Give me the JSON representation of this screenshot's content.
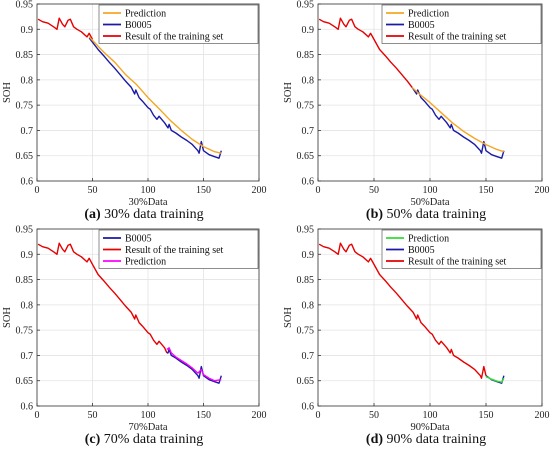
{
  "chart_data": [
    {
      "type": "line",
      "caption_letter": "(a)",
      "caption_text": " 30% data training",
      "xlabel": "30%Data",
      "ylabel": "SOH",
      "xlim": [
        0,
        200
      ],
      "ylim": [
        0.6,
        0.95
      ],
      "xticks": [
        0,
        50,
        100,
        150,
        200
      ],
      "yticks": [
        0.6,
        0.65,
        0.7,
        0.75,
        0.8,
        0.85,
        0.9,
        0.95
      ],
      "grid": true,
      "legend_position": "top-right",
      "legend": [
        {
          "name": "Prediction",
          "color": "#f5a623"
        },
        {
          "name": "B0005",
          "color": "#1a1aa6"
        },
        {
          "name": "Result of the training set",
          "color": "#e60000"
        }
      ],
      "series": [
        {
          "name": "Result of the training set",
          "color": "#e60000",
          "x": [
            1,
            5,
            10,
            15,
            18,
            20,
            23,
            25,
            28,
            30,
            33,
            36,
            40,
            45,
            47,
            50
          ],
          "y": [
            0.92,
            0.915,
            0.912,
            0.905,
            0.9,
            0.922,
            0.91,
            0.905,
            0.918,
            0.92,
            0.905,
            0.9,
            0.895,
            0.885,
            0.892,
            0.88
          ]
        },
        {
          "name": "B0005",
          "color": "#1a1aa6",
          "x": [
            47,
            55,
            60,
            65,
            70,
            75,
            80,
            85,
            88,
            89,
            92,
            95,
            100,
            102,
            105,
            108,
            110,
            115,
            118,
            119,
            121,
            125,
            130,
            135,
            140,
            145,
            146,
            148,
            150,
            155,
            160,
            164,
            166
          ],
          "y": [
            0.883,
            0.86,
            0.848,
            0.835,
            0.823,
            0.81,
            0.797,
            0.785,
            0.772,
            0.78,
            0.765,
            0.758,
            0.745,
            0.742,
            0.73,
            0.722,
            0.728,
            0.715,
            0.705,
            0.712,
            0.7,
            0.695,
            0.687,
            0.68,
            0.672,
            0.66,
            0.655,
            0.678,
            0.66,
            0.652,
            0.648,
            0.645,
            0.66
          ]
        },
        {
          "name": "Prediction",
          "color": "#f5a623",
          "x": [
            47,
            60,
            70,
            80,
            90,
            100,
            110,
            120,
            130,
            140,
            150,
            160,
            166
          ],
          "y": [
            0.885,
            0.855,
            0.835,
            0.81,
            0.79,
            0.765,
            0.743,
            0.72,
            0.7,
            0.682,
            0.668,
            0.658,
            0.655
          ]
        }
      ]
    },
    {
      "type": "line",
      "caption_letter": "(b)",
      "caption_text": " 50% data training",
      "xlabel": "50%Data",
      "ylabel": "SOH",
      "xlim": [
        0,
        200
      ],
      "ylim": [
        0.6,
        0.95
      ],
      "xticks": [
        0,
        50,
        100,
        150,
        200
      ],
      "yticks": [
        0.6,
        0.65,
        0.7,
        0.75,
        0.8,
        0.85,
        0.9,
        0.95
      ],
      "grid": true,
      "legend_position": "top-right",
      "legend": [
        {
          "name": "Prediction",
          "color": "#f5a623"
        },
        {
          "name": "B0005",
          "color": "#1a1aa6"
        },
        {
          "name": "Result of the training set",
          "color": "#e60000"
        }
      ],
      "series": [
        {
          "name": "Result of the training set",
          "color": "#e60000",
          "x": [
            1,
            5,
            10,
            15,
            18,
            20,
            23,
            25,
            28,
            30,
            33,
            36,
            40,
            45,
            47,
            50,
            55,
            60,
            65,
            70,
            75,
            80,
            84
          ],
          "y": [
            0.92,
            0.915,
            0.912,
            0.905,
            0.9,
            0.922,
            0.91,
            0.905,
            0.918,
            0.92,
            0.905,
            0.9,
            0.895,
            0.885,
            0.892,
            0.88,
            0.86,
            0.848,
            0.835,
            0.823,
            0.81,
            0.797,
            0.785
          ]
        },
        {
          "name": "B0005",
          "color": "#1a1aa6",
          "x": [
            84,
            88,
            89,
            92,
            95,
            100,
            102,
            105,
            108,
            110,
            115,
            118,
            119,
            121,
            125,
            130,
            135,
            140,
            145,
            146,
            148,
            150,
            155,
            160,
            164,
            166
          ],
          "y": [
            0.785,
            0.772,
            0.78,
            0.765,
            0.758,
            0.745,
            0.742,
            0.73,
            0.722,
            0.728,
            0.715,
            0.705,
            0.712,
            0.7,
            0.695,
            0.687,
            0.68,
            0.672,
            0.66,
            0.655,
            0.678,
            0.66,
            0.652,
            0.648,
            0.645,
            0.66
          ]
        },
        {
          "name": "Prediction",
          "color": "#f5a623",
          "x": [
            84,
            90,
            100,
            110,
            120,
            130,
            140,
            150,
            160,
            166
          ],
          "y": [
            0.785,
            0.773,
            0.755,
            0.735,
            0.715,
            0.698,
            0.684,
            0.672,
            0.662,
            0.658
          ]
        }
      ]
    },
    {
      "type": "line",
      "caption_letter": "(c)",
      "caption_text": " 70% data training",
      "xlabel": "70%Data",
      "ylabel": "SOH",
      "xlim": [
        0,
        200
      ],
      "ylim": [
        0.6,
        0.95
      ],
      "xticks": [
        0,
        50,
        100,
        150,
        200
      ],
      "yticks": [
        0.6,
        0.65,
        0.7,
        0.75,
        0.8,
        0.85,
        0.9,
        0.95
      ],
      "grid": true,
      "legend_position": "top-right",
      "legend": [
        {
          "name": "B0005",
          "color": "#1a1aa6"
        },
        {
          "name": "Result of the training set",
          "color": "#e60000"
        },
        {
          "name": "Prediction",
          "color": "#ff00ff"
        }
      ],
      "series": [
        {
          "name": "Result of the training set",
          "color": "#e60000",
          "x": [
            1,
            5,
            10,
            15,
            18,
            20,
            23,
            25,
            28,
            30,
            33,
            36,
            40,
            45,
            47,
            50,
            55,
            60,
            65,
            70,
            75,
            80,
            85,
            88,
            89,
            92,
            95,
            100,
            102,
            105,
            108,
            110,
            115,
            117
          ],
          "y": [
            0.92,
            0.915,
            0.912,
            0.905,
            0.9,
            0.922,
            0.91,
            0.905,
            0.918,
            0.92,
            0.905,
            0.9,
            0.895,
            0.885,
            0.892,
            0.88,
            0.86,
            0.848,
            0.835,
            0.823,
            0.81,
            0.797,
            0.785,
            0.772,
            0.78,
            0.765,
            0.758,
            0.745,
            0.742,
            0.73,
            0.722,
            0.728,
            0.715,
            0.705
          ]
        },
        {
          "name": "B0005",
          "color": "#1a1aa6",
          "x": [
            117,
            118,
            119,
            121,
            125,
            130,
            135,
            140,
            145,
            146,
            148,
            150,
            155,
            160,
            164,
            166
          ],
          "y": [
            0.705,
            0.705,
            0.712,
            0.7,
            0.695,
            0.687,
            0.68,
            0.672,
            0.66,
            0.655,
            0.678,
            0.66,
            0.652,
            0.648,
            0.645,
            0.66
          ]
        },
        {
          "name": "Prediction",
          "color": "#ff00ff",
          "x": [
            117,
            119,
            121,
            125,
            130,
            135,
            140,
            145,
            148,
            150,
            155,
            160,
            166
          ],
          "y": [
            0.712,
            0.715,
            0.705,
            0.697,
            0.69,
            0.683,
            0.675,
            0.665,
            0.672,
            0.662,
            0.655,
            0.65,
            0.652
          ]
        }
      ]
    },
    {
      "type": "line",
      "caption_letter": "(d)",
      "caption_text": " 90% data training",
      "xlabel": "90%Data",
      "ylabel": "SOH",
      "xlim": [
        0,
        200
      ],
      "ylim": [
        0.6,
        0.95
      ],
      "xticks": [
        0,
        50,
        100,
        150,
        200
      ],
      "yticks": [
        0.6,
        0.65,
        0.7,
        0.75,
        0.8,
        0.85,
        0.9,
        0.95
      ],
      "grid": true,
      "legend_position": "top-right",
      "legend": [
        {
          "name": "Prediction",
          "color": "#33dd33"
        },
        {
          "name": "B0005",
          "color": "#1a1aa6"
        },
        {
          "name": "Result of the training set",
          "color": "#e60000"
        }
      ],
      "series": [
        {
          "name": "Result of the training set",
          "color": "#e60000",
          "x": [
            1,
            5,
            10,
            15,
            18,
            20,
            23,
            25,
            28,
            30,
            33,
            36,
            40,
            45,
            47,
            50,
            55,
            60,
            65,
            70,
            75,
            80,
            85,
            88,
            89,
            92,
            95,
            100,
            102,
            105,
            108,
            110,
            115,
            118,
            119,
            121,
            125,
            130,
            135,
            140,
            145,
            146,
            148,
            150
          ],
          "y": [
            0.92,
            0.915,
            0.912,
            0.905,
            0.9,
            0.922,
            0.91,
            0.905,
            0.918,
            0.92,
            0.905,
            0.9,
            0.895,
            0.885,
            0.892,
            0.88,
            0.86,
            0.848,
            0.835,
            0.823,
            0.81,
            0.797,
            0.785,
            0.772,
            0.78,
            0.765,
            0.758,
            0.745,
            0.742,
            0.73,
            0.722,
            0.728,
            0.715,
            0.705,
            0.712,
            0.7,
            0.695,
            0.687,
            0.68,
            0.672,
            0.66,
            0.655,
            0.678,
            0.66
          ]
        },
        {
          "name": "B0005",
          "color": "#1a1aa6",
          "x": [
            150,
            155,
            160,
            164,
            166
          ],
          "y": [
            0.66,
            0.652,
            0.648,
            0.645,
            0.66
          ]
        },
        {
          "name": "Prediction",
          "color": "#33dd33",
          "x": [
            150,
            155,
            160,
            164,
            166
          ],
          "y": [
            0.658,
            0.653,
            0.649,
            0.647,
            0.655
          ]
        }
      ]
    }
  ]
}
